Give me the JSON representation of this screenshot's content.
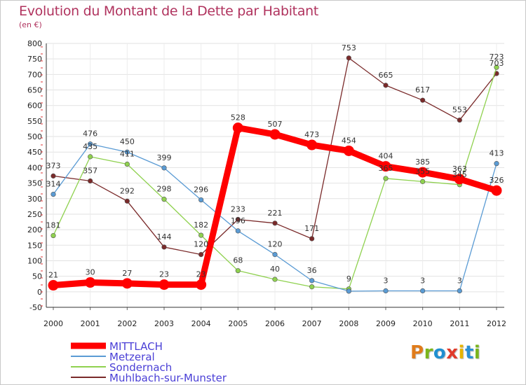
{
  "title": "Evolution du Montant de la Dette par Habitant",
  "unit": "(en €)",
  "logo": {
    "letters": [
      {
        "ch": "P",
        "color": "#e07b1a"
      },
      {
        "ch": "r",
        "color": "#7ab51d"
      },
      {
        "ch": "o",
        "color": "#1f8fd0"
      },
      {
        "ch": "x",
        "color": "#e03a2a"
      },
      {
        "ch": "i",
        "color": "#e6b400"
      },
      {
        "ch": "t",
        "color": "#2a8fd4"
      },
      {
        "ch": "i",
        "color": "#7ab51d"
      }
    ]
  },
  "chart_data": {
    "type": "line",
    "x": [
      2000,
      2001,
      2002,
      2003,
      2004,
      2005,
      2006,
      2007,
      2008,
      2009,
      2010,
      2011,
      2012
    ],
    "ylim": [
      -50,
      800
    ],
    "yticks": [
      -50,
      0,
      50,
      100,
      150,
      200,
      250,
      300,
      350,
      400,
      450,
      500,
      550,
      600,
      650,
      700,
      750,
      800
    ],
    "grid": true,
    "legend_position": "bottom-left",
    "series": [
      {
        "name": "MITTLACH",
        "color": "#ff0000",
        "values": [
          21,
          30,
          27,
          23,
          23,
          528,
          507,
          473,
          454,
          404,
          385,
          363,
          326
        ]
      },
      {
        "name": "Metzeral",
        "color": "#5a9bd4",
        "values": [
          314,
          476,
          450,
          399,
          296,
          196,
          120,
          36,
          2,
          3,
          3,
          3,
          413
        ]
      },
      {
        "name": "Sondernach",
        "color": "#8fd14f",
        "values": [
          181,
          435,
          411,
          298,
          182,
          68,
          40,
          16,
          9,
          365,
          355,
          345,
          723
        ]
      },
      {
        "name": "Muhlbach-sur-Munster",
        "color": "#7a2a2a",
        "values": [
          373,
          357,
          292,
          144,
          120,
          233,
          221,
          171,
          753,
          665,
          617,
          553,
          703
        ]
      }
    ],
    "point_labels": [
      [
        21,
        30,
        27,
        23,
        23,
        528,
        507,
        473,
        454,
        404,
        385,
        363,
        326
      ],
      [
        314,
        476,
        450,
        399,
        296,
        196,
        120,
        36,
        "",
        3,
        3,
        3,
        413
      ],
      [
        181,
        435,
        411,
        298,
        182,
        68,
        40,
        "",
        9,
        365,
        355,
        345,
        723
      ],
      [
        373,
        357,
        292,
        144,
        120,
        233,
        221,
        171,
        753,
        665,
        617,
        553,
        703
      ]
    ]
  }
}
